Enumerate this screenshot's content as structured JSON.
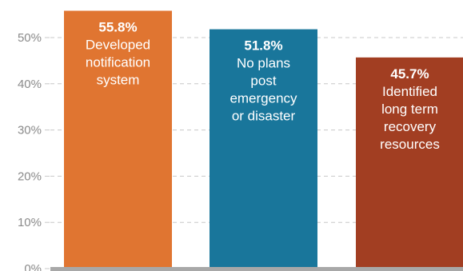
{
  "chart_data": {
    "type": "bar",
    "categories": [
      "Developed notification system",
      "No plans post emergency or disaster",
      "Identified long term recovery resources"
    ],
    "values": [
      55.8,
      51.8,
      45.7
    ],
    "value_labels": [
      "55.8%",
      "51.8%",
      "45.7%"
    ],
    "category_label_lines": [
      [
        "Developed",
        "notification",
        "system"
      ],
      [
        "No plans",
        "post",
        "emergency",
        "or disaster"
      ],
      [
        "Identified",
        "long term",
        "recovery",
        "resources"
      ]
    ],
    "colors": [
      "#e07531",
      "#19769b",
      "#a23e22"
    ],
    "yticks": [
      0,
      10,
      20,
      30,
      40,
      50
    ],
    "ytick_labels": [
      "0%",
      "10%",
      "20%",
      "30%",
      "40%",
      "50%"
    ],
    "ylim": [
      0,
      55.8
    ],
    "grid": true,
    "grid_style": "dashed",
    "title": "",
    "xlabel": "",
    "ylabel": ""
  }
}
